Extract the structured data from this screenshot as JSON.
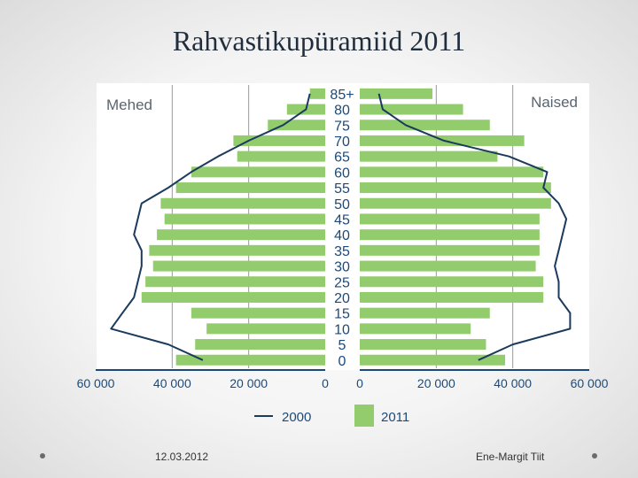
{
  "slide": {
    "title": "Rahvastikupüramiid 2011",
    "date": "12.03.2012",
    "author": "Ene-Margit Tiit"
  },
  "chart_data": {
    "type": "bar",
    "orientation": "horizontal-pyramid",
    "categories": [
      "0",
      "5",
      "10",
      "15",
      "20",
      "25",
      "30",
      "35",
      "40",
      "45",
      "50",
      "55",
      "60",
      "65",
      "70",
      "75",
      "80",
      "85+"
    ],
    "left_label": "Mehed",
    "right_label": "Naised",
    "series": [
      {
        "name": "2011",
        "kind": "bar",
        "men": [
          39000,
          34000,
          31000,
          35000,
          48000,
          47000,
          45000,
          46000,
          44000,
          42000,
          43000,
          39000,
          35000,
          23000,
          24000,
          15000,
          10000,
          4000
        ],
        "women": [
          38000,
          33000,
          29000,
          34000,
          48000,
          48000,
          46000,
          47000,
          47000,
          47000,
          50000,
          50000,
          48000,
          36000,
          43000,
          34000,
          27000,
          19000
        ]
      },
      {
        "name": "2000",
        "kind": "line",
        "men": [
          32000,
          41000,
          56000,
          53000,
          50000,
          49000,
          48000,
          48000,
          50000,
          49000,
          48000,
          41000,
          35000,
          28000,
          20000,
          11000,
          5000,
          4000
        ],
        "women": [
          31000,
          40000,
          55000,
          55000,
          52000,
          52000,
          51000,
          52000,
          53000,
          54000,
          52000,
          48000,
          49000,
          39000,
          22000,
          12000,
          6000,
          5000
        ]
      }
    ],
    "x_ticks_left": [
      "60 000",
      "40 000",
      "20 000",
      "0"
    ],
    "x_ticks_right": [
      "0",
      "20 000",
      "40 000",
      "60 000"
    ],
    "xlim": [
      0,
      60000
    ],
    "legend": {
      "line_label": "2000",
      "bar_label": "2011",
      "placement": "bottom"
    },
    "colors": {
      "bar": "#92cc6c",
      "line": "#1b3a5c",
      "axis": "#1b4a7a",
      "grid": "#9a9a9a"
    }
  }
}
